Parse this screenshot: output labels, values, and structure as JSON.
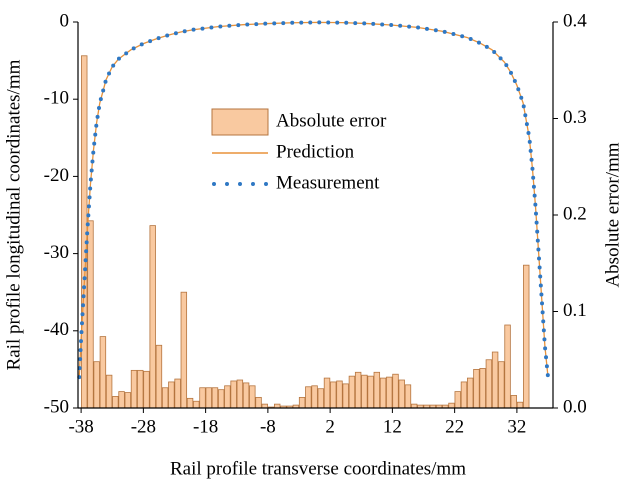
{
  "chart_data": {
    "type": "bar-line",
    "x_label": "Rail profile transverse coordinates/mm",
    "y_label": "Rail profile longitudinal coordinates/mm",
    "y2_label": "Absolute error/mm",
    "xlim": [
      -38.5,
      37.8
    ],
    "xticks": [
      -38,
      -28,
      -18,
      -8,
      2,
      12,
      22,
      32
    ],
    "ylim": [
      -50,
      0
    ],
    "yticks": [
      -50,
      -40,
      -30,
      -20,
      -10,
      0
    ],
    "y2lim": [
      0,
      0.4
    ],
    "y2ticks": [
      {
        "value": 0,
        "label": "0.0"
      },
      0.1,
      0.2,
      0.3,
      0.4
    ],
    "x": [
      -38.3,
      -38,
      -37.5,
      -37,
      -36.5,
      -36,
      -35.5,
      -35,
      -34,
      -33,
      -32,
      -30,
      -28,
      -26,
      -24,
      -22,
      -20,
      -16,
      -12,
      -8,
      -4,
      0,
      4,
      8,
      12,
      16,
      20,
      24,
      26,
      28,
      30,
      31,
      32,
      33,
      34,
      34.5,
      35,
      35.5,
      36,
      36.5,
      37
    ],
    "series": [
      {
        "name": "Absolute error",
        "kind": "bar",
        "axis": "y2",
        "color": "#f9c9a0",
        "x": [
          -37.5,
          -36.5,
          -35.5,
          -34.5,
          -33.5,
          -32.5,
          -31.5,
          -30.5,
          -29.5,
          -28.5,
          -27.5,
          -26.5,
          -25.5,
          -24.5,
          -23.5,
          -22.5,
          -21.5,
          -20.5,
          -19.5,
          -18.5,
          -17.5,
          -16.5,
          -15.5,
          -14.5,
          -13.5,
          -12.5,
          -11.5,
          -10.5,
          -9.5,
          -8.5,
          -7.5,
          -6.5,
          -5.5,
          -4.5,
          -3.5,
          -2.5,
          -1.5,
          -0.5,
          0.5,
          1.5,
          2.5,
          3.5,
          4.5,
          5.5,
          6.5,
          7.5,
          8.5,
          9.5,
          10.5,
          11.5,
          12.5,
          13.5,
          14.5,
          15.5,
          16.5,
          17.5,
          18.5,
          19.5,
          20.5,
          21.5,
          22.5,
          23.5,
          24.5,
          25.5,
          26.5,
          27.5,
          28.5,
          29.5,
          30.5,
          31.5,
          32.5,
          33.5
        ],
        "values": [
          0.365,
          0.194,
          0.048,
          0.074,
          0.034,
          0.012,
          0.017,
          0.016,
          0.039,
          0.039,
          0.038,
          0.189,
          0.065,
          0.021,
          0.027,
          0.03,
          0.12,
          0.01,
          0.007,
          0.021,
          0.021,
          0.021,
          0.019,
          0.023,
          0.028,
          0.029,
          0.026,
          0.023,
          0.011,
          0.004,
          0.001,
          0.004,
          0.002,
          0.002,
          0.003,
          0.011,
          0.022,
          0.023,
          0.02,
          0.031,
          0.027,
          0.028,
          0.025,
          0.033,
          0.037,
          0.034,
          0.033,
          0.037,
          0.031,
          0.032,
          0.035,
          0.029,
          0.024,
          0.004,
          0.003,
          0.003,
          0.003,
          0.003,
          0.003,
          0.005,
          0.017,
          0.027,
          0.031,
          0.04,
          0.041,
          0.05,
          0.058,
          0.048,
          0.086,
          0.013,
          0.006,
          0.148
        ]
      },
      {
        "name": "Prediction",
        "kind": "line",
        "color": "#e8923a",
        "values": [
          -46,
          -41,
          -34,
          -27,
          -21,
          -16.5,
          -13,
          -10.5,
          -7.5,
          -5.8,
          -4.8,
          -3.6,
          -2.8,
          -2.2,
          -1.7,
          -1.3,
          -1.0,
          -0.6,
          -0.35,
          -0.2,
          -0.1,
          -0.05,
          -0.08,
          -0.2,
          -0.4,
          -0.7,
          -1.2,
          -2.0,
          -2.7,
          -3.6,
          -5.2,
          -6.5,
          -8.2,
          -10.5,
          -15,
          -19,
          -24,
          -30,
          -36,
          -42,
          -46
        ]
      },
      {
        "name": "Measurement",
        "kind": "dots",
        "color": "#2f78c4",
        "values": [
          -46,
          -41,
          -34,
          -27,
          -21,
          -16.5,
          -13,
          -10.5,
          -7.5,
          -5.8,
          -4.8,
          -3.6,
          -2.8,
          -2.2,
          -1.7,
          -1.3,
          -1.0,
          -0.6,
          -0.35,
          -0.2,
          -0.1,
          -0.05,
          -0.08,
          -0.2,
          -0.4,
          -0.7,
          -1.2,
          -2.0,
          -2.7,
          -3.6,
          -5.2,
          -6.5,
          -8.2,
          -10.5,
          -15,
          -19,
          -24,
          -30,
          -36,
          -42,
          -46
        ]
      }
    ]
  }
}
